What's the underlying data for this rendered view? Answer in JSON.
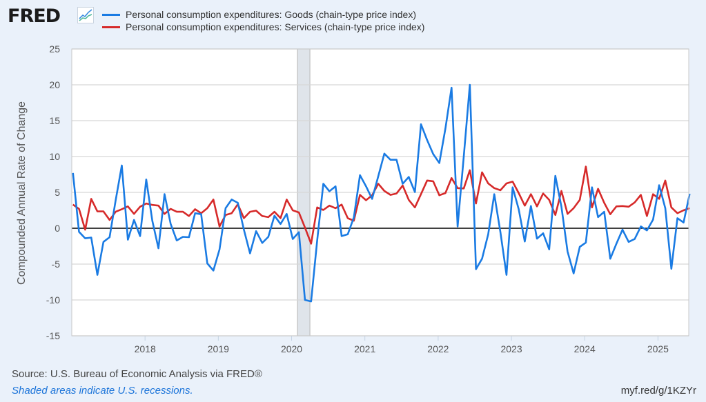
{
  "header": {
    "logo_text": "FRED",
    "logo_icon": "chart-line-icon"
  },
  "legend": [
    {
      "label": "Personal consumption expenditures: Goods (chain-type price index)",
      "color": "#1a7be3"
    },
    {
      "label": "Personal consumption expenditures: Services (chain-type price index)",
      "color": "#d62a2a"
    }
  ],
  "footer": {
    "source": "Source: U.S. Bureau of Economic Analysis via FRED®",
    "note": "Shaded areas indicate U.S. recessions.",
    "link": "myf.red/g/1KZYr"
  },
  "chart_data": {
    "type": "line",
    "title": "",
    "xlabel": "",
    "ylabel": "Compounded Annual Rate of Change",
    "ylim": [
      -15,
      25
    ],
    "yticks": [
      "25",
      "20",
      "15",
      "10",
      "5",
      "0",
      "-5",
      "-10",
      "-15"
    ],
    "ytick_values": [
      25,
      20,
      15,
      10,
      5,
      0,
      -5,
      -10,
      -15
    ],
    "xticks": [
      "2018",
      "2019",
      "2020",
      "2021",
      "2022",
      "2023",
      "2024",
      "2025"
    ],
    "xtick_values": [
      2018,
      2019,
      2020,
      2021,
      2022,
      2023,
      2024,
      2025
    ],
    "x_start": "2017-01",
    "x_end": "2025-06",
    "x_frequency": "monthly",
    "xlim": [
      2017.0,
      2025.42
    ],
    "grid": true,
    "zero_line": true,
    "recession": {
      "start": 2020.08,
      "end": 2020.25,
      "color": "#dfe4ea"
    },
    "series": [
      {
        "name": "Personal consumption expenditures: Goods (chain-type price index)",
        "color": "#1a7be3",
        "values": [
          7.7,
          -0.5,
          -1.4,
          -1.3,
          -6.5,
          -1.9,
          -1.25,
          3.9,
          8.75,
          -1.6,
          1.15,
          -1.1,
          6.8,
          1.05,
          -2.8,
          4.75,
          0.6,
          -1.7,
          -1.2,
          -1.25,
          2.1,
          1.95,
          -4.9,
          -5.9,
          -2.95,
          2.8,
          4.0,
          3.55,
          -0.2,
          -3.5,
          -0.4,
          -2.05,
          -1.2,
          1.75,
          0.6,
          2.0,
          -1.5,
          -0.55,
          -10.0,
          -10.2,
          -1.7,
          6.2,
          5.15,
          5.85,
          -1.1,
          -0.85,
          1.5,
          7.4,
          5.85,
          4.1,
          7.25,
          10.4,
          9.55,
          9.55,
          6.2,
          7.15,
          5.05,
          14.5,
          12.3,
          10.35,
          9.1,
          13.9,
          19.6,
          0.25,
          10.0,
          20.0,
          -5.7,
          -4.25,
          -0.85,
          4.75,
          -0.55,
          -6.5,
          5.7,
          2.65,
          -1.85,
          3.1,
          -1.45,
          -0.7,
          -2.95,
          7.3,
          3.0,
          -3.25,
          -6.3,
          -2.6,
          -2.0,
          5.7,
          1.55,
          2.3,
          -4.25,
          -2.15,
          -0.2,
          -1.9,
          -1.5,
          0.25,
          -0.3,
          1.2,
          6.0,
          2.8,
          -5.65,
          1.4,
          0.8,
          4.8
        ]
      },
      {
        "name": "Personal consumption expenditures: Services (chain-type price index)",
        "color": "#d62a2a",
        "values": [
          3.3,
          2.7,
          -0.2,
          4.1,
          2.35,
          2.35,
          1.15,
          2.3,
          2.65,
          3.05,
          2.0,
          3.0,
          3.45,
          3.25,
          3.15,
          2.0,
          2.7,
          2.3,
          2.3,
          1.7,
          2.65,
          2.1,
          2.8,
          4.0,
          0.25,
          1.85,
          2.1,
          3.35,
          1.4,
          2.3,
          2.45,
          1.7,
          1.55,
          2.3,
          1.4,
          4.0,
          2.5,
          2.2,
          0.1,
          -2.15,
          2.9,
          2.55,
          3.15,
          2.8,
          3.3,
          1.4,
          1.05,
          4.65,
          3.9,
          4.6,
          6.2,
          5.2,
          4.65,
          4.85,
          5.95,
          3.95,
          2.9,
          4.75,
          6.65,
          6.55,
          4.6,
          4.9,
          7.0,
          5.6,
          5.55,
          8.1,
          3.45,
          7.8,
          6.25,
          5.6,
          5.3,
          6.25,
          6.5,
          4.9,
          3.15,
          4.75,
          3.05,
          4.85,
          3.95,
          1.85,
          5.2,
          2.0,
          2.8,
          3.95,
          8.6,
          2.9,
          5.5,
          3.55,
          1.95,
          3.05,
          3.1,
          3.0,
          3.6,
          4.65,
          1.7,
          4.75,
          4.1,
          6.65,
          2.9,
          2.1,
          2.5,
          2.8
        ]
      }
    ]
  }
}
